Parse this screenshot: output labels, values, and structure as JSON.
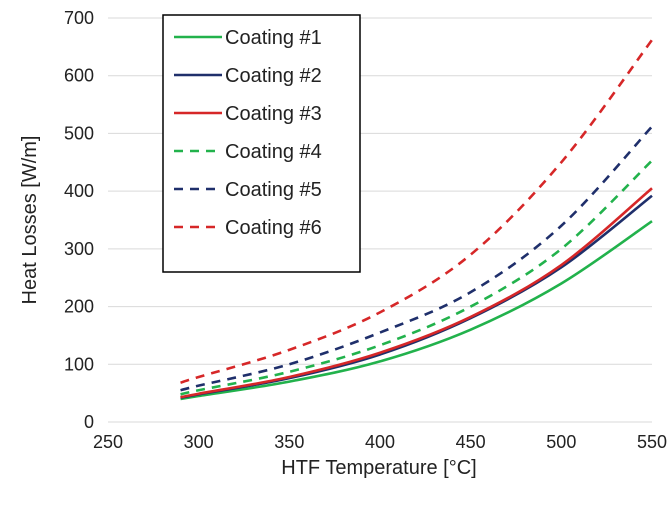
{
  "chart_data": {
    "type": "line",
    "title": "",
    "xlabel": "HTF Temperature [°C]",
    "ylabel": "Heat Losses [W/m]",
    "xlim": [
      250,
      550
    ],
    "ylim": [
      0,
      700
    ],
    "xticks": [
      250,
      300,
      350,
      400,
      450,
      500,
      550
    ],
    "yticks": [
      0,
      100,
      200,
      300,
      400,
      500,
      600,
      700
    ],
    "grid": "horizontal",
    "legend_position": "top-left",
    "x": [
      290,
      300,
      350,
      400,
      450,
      500,
      550
    ],
    "series": [
      {
        "name": "Coating #1",
        "color": "#22b24c",
        "dash": "solid",
        "values": [
          40,
          45,
          70,
          105,
          160,
          240,
          348
        ]
      },
      {
        "name": "Coating #2",
        "color": "#1f2f6b",
        "dash": "solid",
        "values": [
          42,
          48,
          76,
          117,
          180,
          268,
          392
        ]
      },
      {
        "name": "Coating #3",
        "color": "#d62728",
        "dash": "solid",
        "values": [
          43,
          49,
          78,
          120,
          182,
          272,
          405
        ]
      },
      {
        "name": "Coating #4",
        "color": "#22b24c",
        "dash": "dashed",
        "values": [
          48,
          55,
          87,
          133,
          200,
          300,
          453
        ]
      },
      {
        "name": "Coating #5",
        "color": "#1f2f6b",
        "dash": "dashed",
        "values": [
          55,
          63,
          100,
          155,
          225,
          340,
          512
        ]
      },
      {
        "name": "Coating #6",
        "color": "#d62728",
        "dash": "dashed",
        "values": [
          68,
          78,
          125,
          190,
          290,
          450,
          662
        ]
      }
    ]
  }
}
